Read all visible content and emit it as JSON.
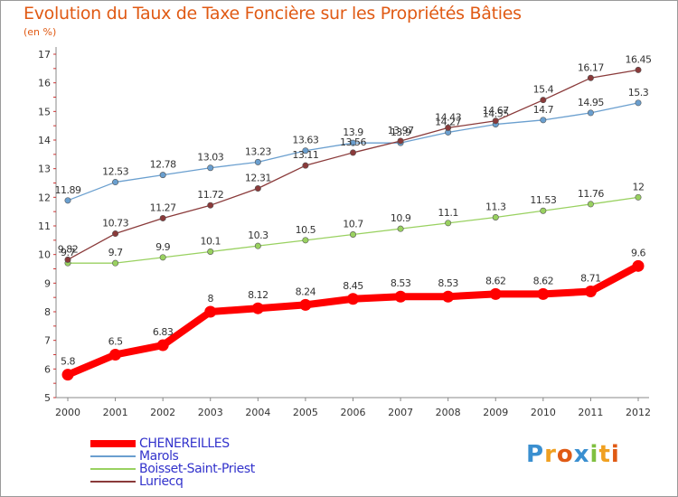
{
  "chart_data": {
    "type": "line",
    "title": "Evolution du Taux de Taxe Foncière sur les Propriétés Bâties",
    "unit_label": "(en %)",
    "xlabel": "",
    "ylabel": "",
    "x": [
      "2000",
      "2001",
      "2002",
      "2003",
      "2004",
      "2005",
      "2006",
      "2007",
      "2008",
      "2009",
      "2010",
      "2011",
      "2012"
    ],
    "ylim": [
      5,
      17
    ],
    "yticks": [
      5,
      6,
      7,
      8,
      9,
      10,
      11,
      12,
      13,
      14,
      15,
      16,
      17
    ],
    "grid": false,
    "legend_position": "bottom-left",
    "series": [
      {
        "name": "CHENEREILLES",
        "color": "#ff0000",
        "values": [
          5.8,
          6.5,
          6.83,
          8,
          8.12,
          8.24,
          8.45,
          8.53,
          8.53,
          8.62,
          8.62,
          8.71,
          9.6
        ],
        "labels": [
          "5.8",
          "6.5",
          "6.83",
          "8",
          "8.12",
          "8.24",
          "8.45",
          "8.53",
          "8.53",
          "8.62",
          "8.62",
          "8.71",
          "9.6"
        ]
      },
      {
        "name": "Marols",
        "color": "#6a9fcf",
        "values": [
          11.89,
          12.53,
          12.78,
          13.03,
          13.23,
          13.63,
          13.9,
          13.9,
          14.27,
          14.55,
          14.7,
          14.95,
          15.3
        ],
        "labels": [
          "11.89",
          "12.53",
          "12.78",
          "13.03",
          "13.23",
          "13.63",
          "13.9",
          "13.9",
          "14.27",
          "14.55",
          "14.7",
          "14.95",
          "15.3"
        ]
      },
      {
        "name": "Boisset-Saint-Priest",
        "color": "#99d160",
        "values": [
          9.7,
          9.7,
          9.9,
          10.1,
          10.3,
          10.5,
          10.7,
          10.9,
          11.1,
          11.3,
          11.53,
          11.76,
          12
        ],
        "labels": [
          "9.7",
          "9.7",
          "9.9",
          "10.1",
          "10.3",
          "10.5",
          "10.7",
          "10.9",
          "11.1",
          "11.3",
          "11.53",
          "11.76",
          "12"
        ]
      },
      {
        "name": "Luriecq",
        "color": "#8a3a3a",
        "values": [
          9.82,
          10.73,
          11.27,
          11.72,
          12.31,
          13.11,
          13.56,
          13.97,
          14.43,
          14.67,
          15.4,
          16.17,
          16.45
        ],
        "labels": [
          "9.82",
          "10.73",
          "11.27",
          "11.72",
          "12.31",
          "13.11",
          "13.56",
          "13.97",
          "14.43",
          "14.67",
          "15.4",
          "16.17",
          "16.45"
        ]
      }
    ]
  },
  "logo": {
    "letters": [
      "P",
      "r",
      "o",
      "x",
      "i",
      "t",
      "i"
    ],
    "colors": [
      "#3a8fd0",
      "#f0a020",
      "#e05a14",
      "#3a8fd0",
      "#80c040",
      "#f0a020",
      "#e05a14"
    ]
  }
}
